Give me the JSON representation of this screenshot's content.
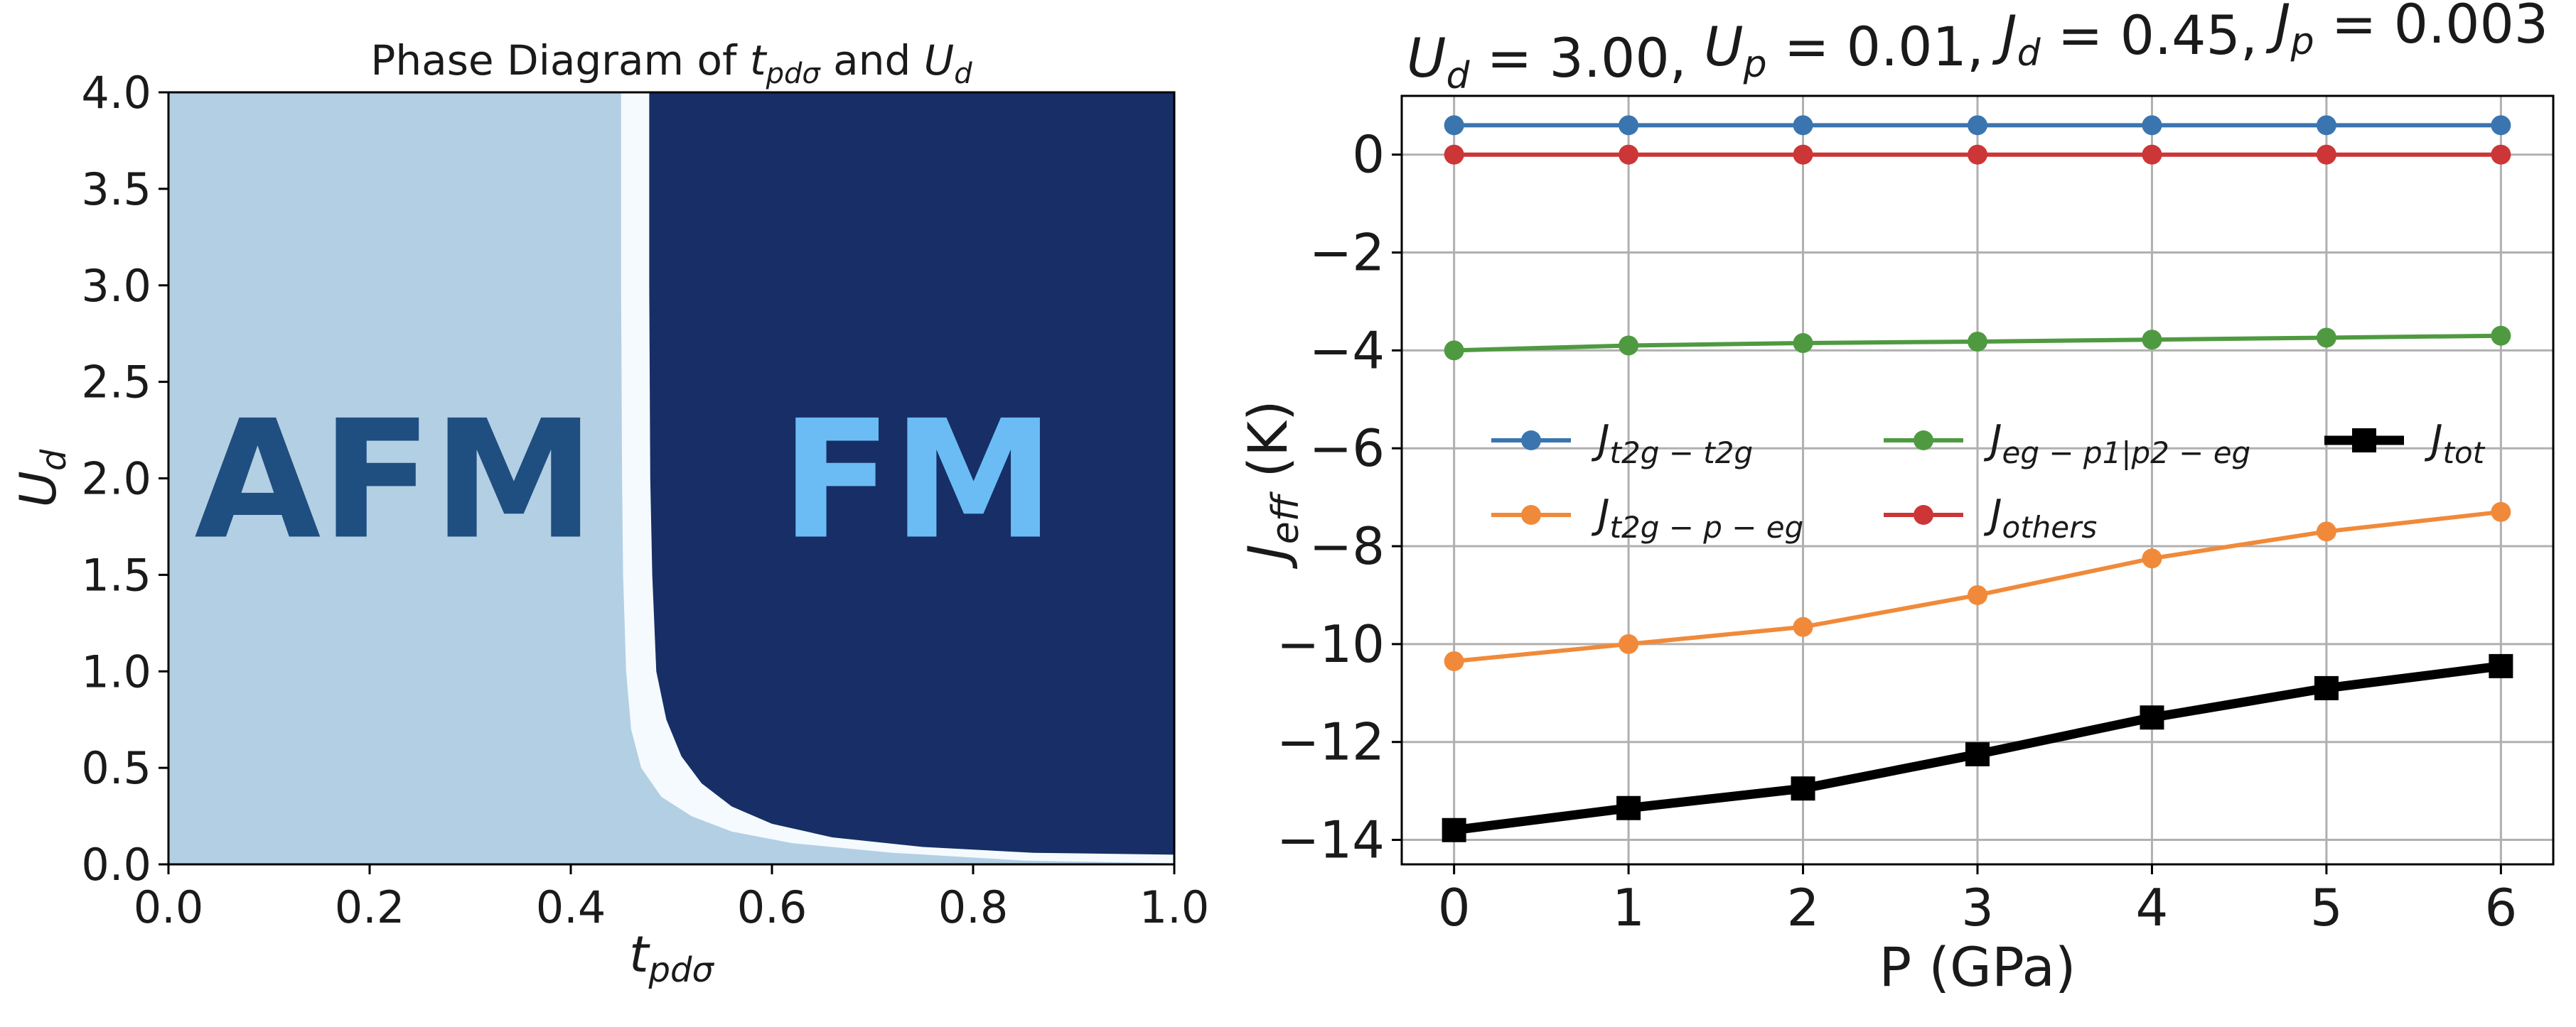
{
  "chart_data": [
    {
      "type": "heatmap",
      "title_parts": {
        "prefix": "Phase Diagram of ",
        "var1": "t",
        "var1_sub": "pdσ",
        "mid": " and ",
        "var2": "U",
        "var2_sub": "d"
      },
      "xlabel": {
        "var": "t",
        "sub": "pdσ"
      },
      "ylabel": {
        "var": "U",
        "sub": "d"
      },
      "xlim": [
        0.0,
        1.0
      ],
      "ylim": [
        0.0,
        4.0
      ],
      "xticks": [
        "0.0",
        "0.2",
        "0.4",
        "0.6",
        "0.8",
        "1.0"
      ],
      "yticks": [
        "0.0",
        "0.5",
        "1.0",
        "1.5",
        "2.0",
        "2.5",
        "3.0",
        "3.5",
        "4.0"
      ],
      "regions": [
        {
          "label": "AFM",
          "color": "#b3cfe3",
          "label_color": "#1f4e80"
        },
        {
          "label": "",
          "color": "#f5faff"
        },
        {
          "label": "FM",
          "color": "#172f66",
          "label_color": "#6bbcf5"
        }
      ],
      "boundary": {
        "afm_edge_formula": "t = 0.45 + 0.02/U for small U; asymptote ≈0.45",
        "afm_edge_points": [
          [
            0.45,
            4.0
          ],
          [
            0.45,
            3.0
          ],
          [
            0.451,
            2.0
          ],
          [
            0.452,
            1.5
          ],
          [
            0.455,
            1.0
          ],
          [
            0.46,
            0.7
          ],
          [
            0.47,
            0.5
          ],
          [
            0.49,
            0.35
          ],
          [
            0.52,
            0.25
          ],
          [
            0.56,
            0.17
          ],
          [
            0.62,
            0.11
          ],
          [
            0.72,
            0.06
          ],
          [
            0.85,
            0.02
          ],
          [
            1.0,
            0.005
          ]
        ],
        "fm_edge_points": [
          [
            0.478,
            4.0
          ],
          [
            0.478,
            3.0
          ],
          [
            0.479,
            2.0
          ],
          [
            0.481,
            1.5
          ],
          [
            0.485,
            1.0
          ],
          [
            0.495,
            0.75
          ],
          [
            0.51,
            0.56
          ],
          [
            0.53,
            0.42
          ],
          [
            0.56,
            0.3
          ],
          [
            0.6,
            0.21
          ],
          [
            0.66,
            0.14
          ],
          [
            0.75,
            0.09
          ],
          [
            0.86,
            0.06
          ],
          [
            1.0,
            0.05
          ]
        ]
      }
    },
    {
      "type": "line",
      "title": "U_d = 3.00,  U_p = 0.01,  J_d = 0.45,  J_p = 0.003",
      "title_parts": [
        {
          "var": "U",
          "sub": "d",
          "rest": " = 3.00, "
        },
        {
          "var": "U",
          "sub": "p",
          "rest": " = 0.01, "
        },
        {
          "var": "J",
          "sub": "d",
          "rest": " = 0.45, "
        },
        {
          "var": "J",
          "sub": "p",
          "rest": " = 0.003"
        }
      ],
      "xlabel": "P (GPa)",
      "ylabel": {
        "var": "J",
        "sub": "eff",
        "rest": " (K)"
      },
      "x": [
        0,
        1,
        2,
        3,
        4,
        5,
        6
      ],
      "xticks": [
        "0",
        "1",
        "2",
        "3",
        "4",
        "5",
        "6"
      ],
      "yticks": [
        {
          "v": 0,
          "t": "0"
        },
        {
          "v": -2,
          "t": "−2"
        },
        {
          "v": -4,
          "t": "−4"
        },
        {
          "v": -6,
          "t": "−6"
        },
        {
          "v": -8,
          "t": "−8"
        },
        {
          "v": -10,
          "t": "−10"
        },
        {
          "v": -12,
          "t": "−12"
        },
        {
          "v": -14,
          "t": "−14"
        }
      ],
      "xlim": [
        -0.3,
        6.3
      ],
      "ylim": [
        -14.5,
        1.2
      ],
      "grid": true,
      "legend_position": "center",
      "series": [
        {
          "name": "J",
          "sub": "t2g − t2g",
          "color": "#3a75b0",
          "marker": "circle",
          "width": 6,
          "values": [
            0.6,
            0.6,
            0.6,
            0.6,
            0.6,
            0.6,
            0.6
          ]
        },
        {
          "name": "J",
          "sub": "t2g − p − eg",
          "color": "#f08a3a",
          "marker": "circle",
          "width": 6,
          "values": [
            -10.35,
            -10.0,
            -9.65,
            -9.0,
            -8.25,
            -7.7,
            -7.3
          ]
        },
        {
          "name": "J",
          "sub": "eg − p1|p2 − eg",
          "color": "#4f9a41",
          "marker": "circle",
          "width": 6,
          "values": [
            -4.0,
            -3.9,
            -3.85,
            -3.82,
            -3.78,
            -3.74,
            -3.7
          ]
        },
        {
          "name": "J",
          "sub": "others",
          "color": "#cc3636",
          "marker": "circle",
          "width": 6,
          "values": [
            0.0,
            0.0,
            0.0,
            0.0,
            0.0,
            0.0,
            0.0
          ]
        },
        {
          "name": "J",
          "sub": "tot",
          "color": "#000000",
          "marker": "square",
          "width": 13,
          "values": [
            -13.8,
            -13.35,
            -12.95,
            -12.25,
            -11.5,
            -10.9,
            -10.45
          ]
        }
      ]
    }
  ]
}
